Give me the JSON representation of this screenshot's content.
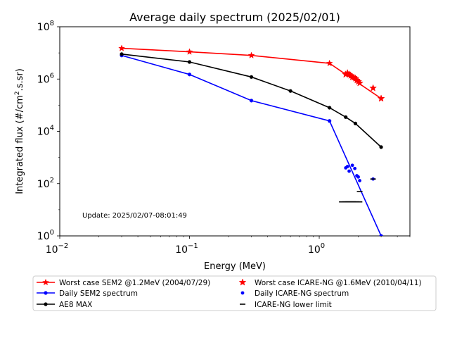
{
  "chart_data": {
    "type": "line",
    "title": "Average daily spectrum (2025/02/01)",
    "xlabel": "Energy (MeV)",
    "ylabel": "Integrated flux (#/cm².s.sr)",
    "ylabel_parts": {
      "base": "Integrated flux (#/cm",
      "sup": "2",
      "rest": ".s.sr)"
    },
    "xscale": "log",
    "yscale": "log",
    "xlim": [
      0.01,
      5
    ],
    "ylim": [
      1,
      100000000
    ],
    "grid": false,
    "legend_position": "below",
    "x_ticks": [
      {
        "value": 0.01,
        "base": "10",
        "exp": "−2"
      },
      {
        "value": 0.1,
        "base": "10",
        "exp": "−1"
      },
      {
        "value": 1,
        "base": "10",
        "exp": "0"
      }
    ],
    "y_ticks": [
      {
        "value": 1,
        "base": "10",
        "exp": "0"
      },
      {
        "value": 100,
        "base": "10",
        "exp": "2"
      },
      {
        "value": 10000,
        "base": "10",
        "exp": "4"
      },
      {
        "value": 1000000,
        "base": "10",
        "exp": "6"
      },
      {
        "value": 100000000,
        "base": "10",
        "exp": "8"
      }
    ],
    "annotation": "Update: 2025/02/07-08:01:49",
    "series": [
      {
        "name": "Worst case SEM2 @1.2MeV (2004/07/29)",
        "color": "#ff0000",
        "style": "line-marker",
        "marker": "star",
        "x": [
          0.03,
          0.1,
          0.3,
          1.2,
          3.0
        ],
        "y": [
          15000000,
          11000000,
          8000000,
          4000000,
          180000
        ]
      },
      {
        "name": "Daily SEM2 spectrum",
        "color": "#0000ff",
        "style": "line-marker",
        "marker": "dot",
        "x": [
          0.03,
          0.1,
          0.3,
          1.2,
          3.0
        ],
        "y": [
          8000000,
          1500000,
          150000,
          25000,
          1
        ]
      },
      {
        "name": "AE8 MAX",
        "color": "#000000",
        "style": "line-marker",
        "marker": "dot",
        "x": [
          0.03,
          0.1,
          0.3,
          0.6,
          1.2,
          1.6,
          1.9,
          3.0
        ],
        "y": [
          9000000,
          4500000,
          1200000,
          350000,
          80000,
          35000,
          20000,
          2500
        ]
      },
      {
        "name": "Worst case ICARE-NG @1.6MeV (2010/04/11)",
        "color": "#ff0000",
        "style": "scatter",
        "marker": "star",
        "x": [
          1.6,
          1.65,
          1.7,
          1.75,
          1.8,
          1.85,
          1.9,
          1.95,
          2.0,
          2.05,
          2.6,
          3.0
        ],
        "y": [
          1500000,
          1700000,
          1500000,
          1350000,
          1200000,
          1150000,
          1050000,
          900000,
          800000,
          700000,
          450000,
          180000
        ]
      },
      {
        "name": "Daily ICARE-NG spectrum",
        "color": "#0000ff",
        "style": "scatter",
        "marker": "dot",
        "x": [
          1.6,
          1.65,
          1.7,
          1.8,
          1.88,
          1.95,
          2.0,
          2.05,
          2.6
        ],
        "y": [
          400,
          450,
          300,
          500,
          380,
          200,
          180,
          130,
          150
        ]
      },
      {
        "name": "ICARE-NG lower limit",
        "color": "#000000",
        "style": "scatter",
        "marker": "hline",
        "x": [
          1.65,
          1.75,
          1.85,
          2.05,
          2.6
        ],
        "y": [
          20,
          20,
          20,
          50,
          150
        ]
      }
    ]
  }
}
